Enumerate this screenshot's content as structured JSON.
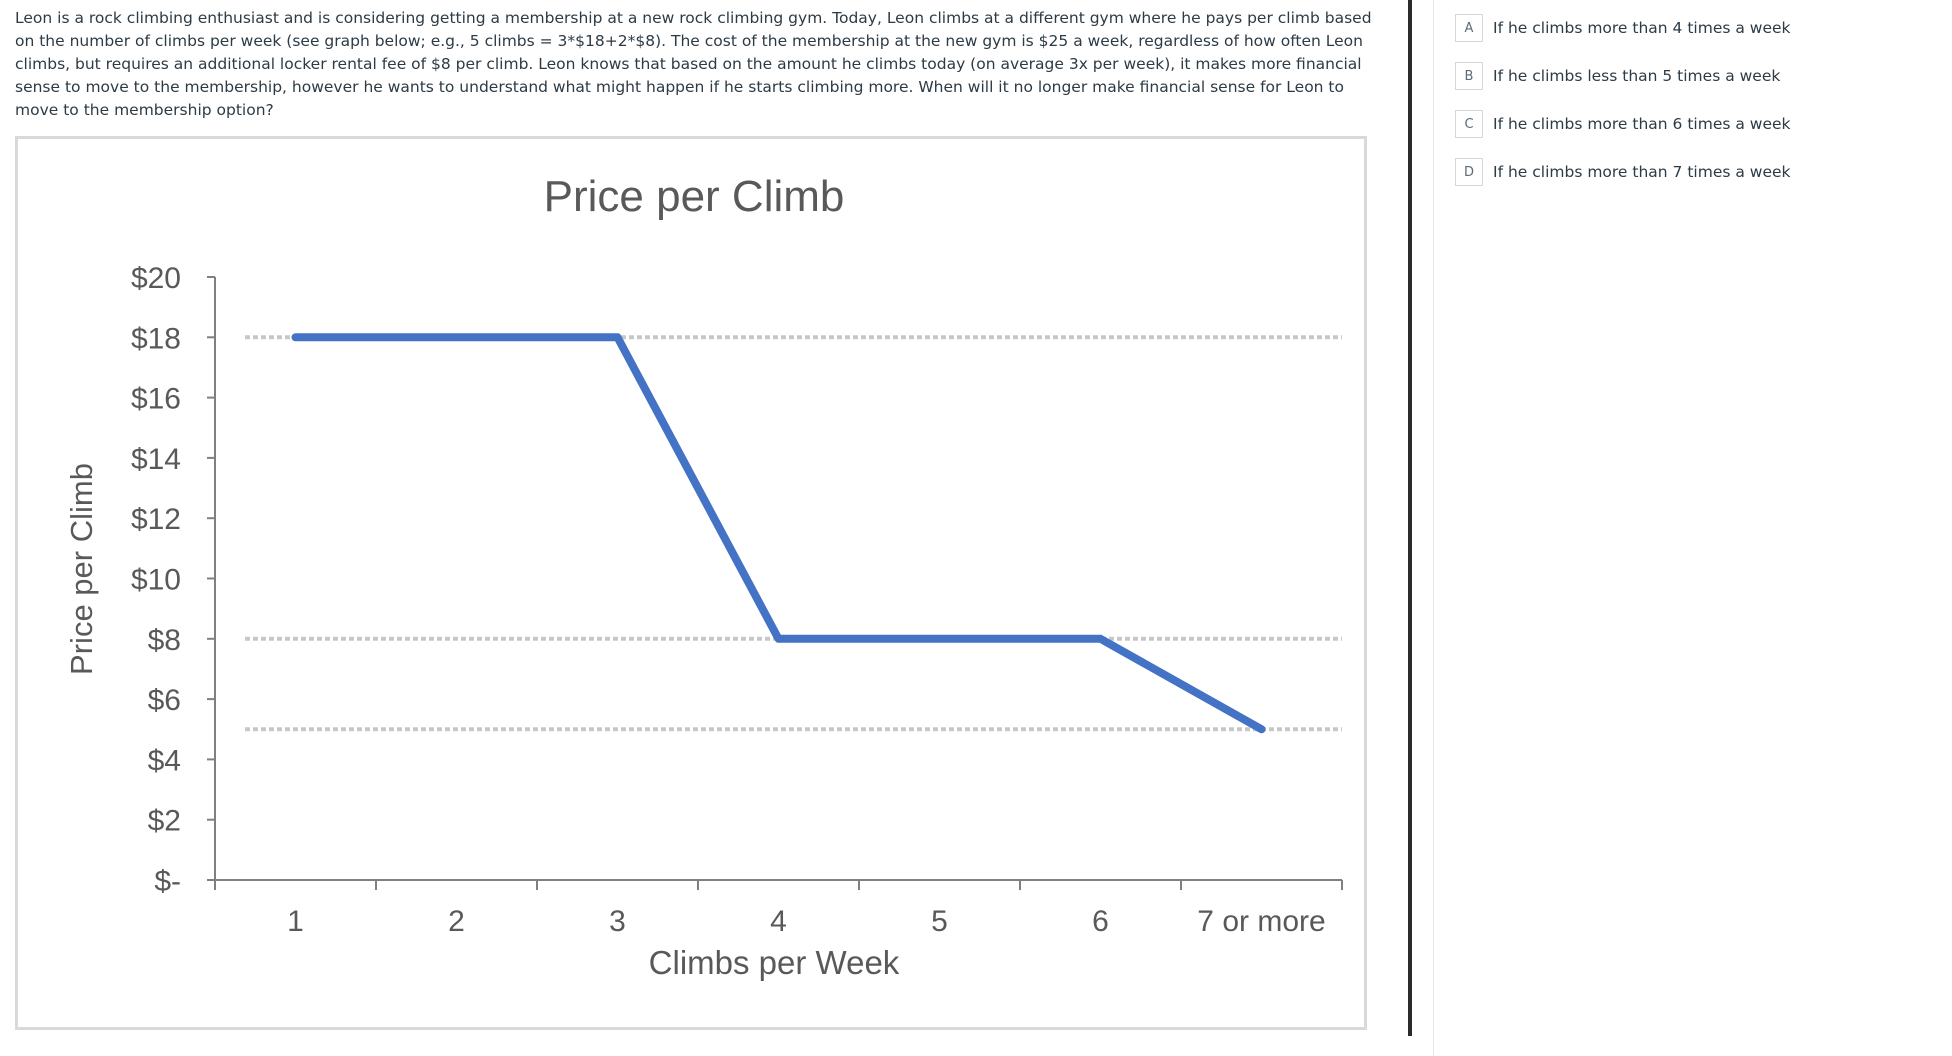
{
  "question": {
    "text": "Leon is a rock climbing enthusiast and is considering getting a membership at a new rock climbing gym. Today, Leon climbs at a different gym where he pays per climb based on the number of climbs per week (see graph below; e.g., 5 climbs = 3*$18+2*$8). The cost of the membership at the new gym is $25 a week, regardless of how often Leon climbs, but requires an additional locker rental fee of $8 per climb. Leon knows that based on the amount he climbs today (on average 3x per week), it makes more financial sense to move to the membership, however he wants to understand what might happen if he starts climbing more. When will it no longer make financial sense for Leon to move to the membership option?"
  },
  "answers": [
    {
      "letter": "A",
      "text": "If he climbs more than 4 times a week"
    },
    {
      "letter": "B",
      "text": "If he climbs less than 5 times a week"
    },
    {
      "letter": "C",
      "text": "If he climbs more than 6 times a week"
    },
    {
      "letter": "D",
      "text": "If he climbs more than 7 times a week"
    }
  ],
  "chart_data": {
    "type": "line",
    "title": "Price per Climb",
    "xlabel": "Climbs per Week",
    "ylabel": "Price per Climb",
    "categories": [
      "1",
      "2",
      "3",
      "4",
      "5",
      "6",
      "7 or more"
    ],
    "y_tick_labels": [
      "$-",
      "$2",
      "$4",
      "$6",
      "$8",
      "$10",
      "$12",
      "$14",
      "$16",
      "$18",
      "$20"
    ],
    "y_ticks": [
      0,
      2,
      4,
      6,
      8,
      10,
      12,
      14,
      16,
      18,
      20
    ],
    "ylim": [
      0,
      20
    ],
    "series": [
      {
        "values": [
          18,
          18,
          18,
          8,
          8,
          8,
          5
        ],
        "color": "#4472c4"
      }
    ],
    "reference_lines": [
      18,
      8,
      5
    ],
    "grid": false,
    "legend": "none"
  }
}
